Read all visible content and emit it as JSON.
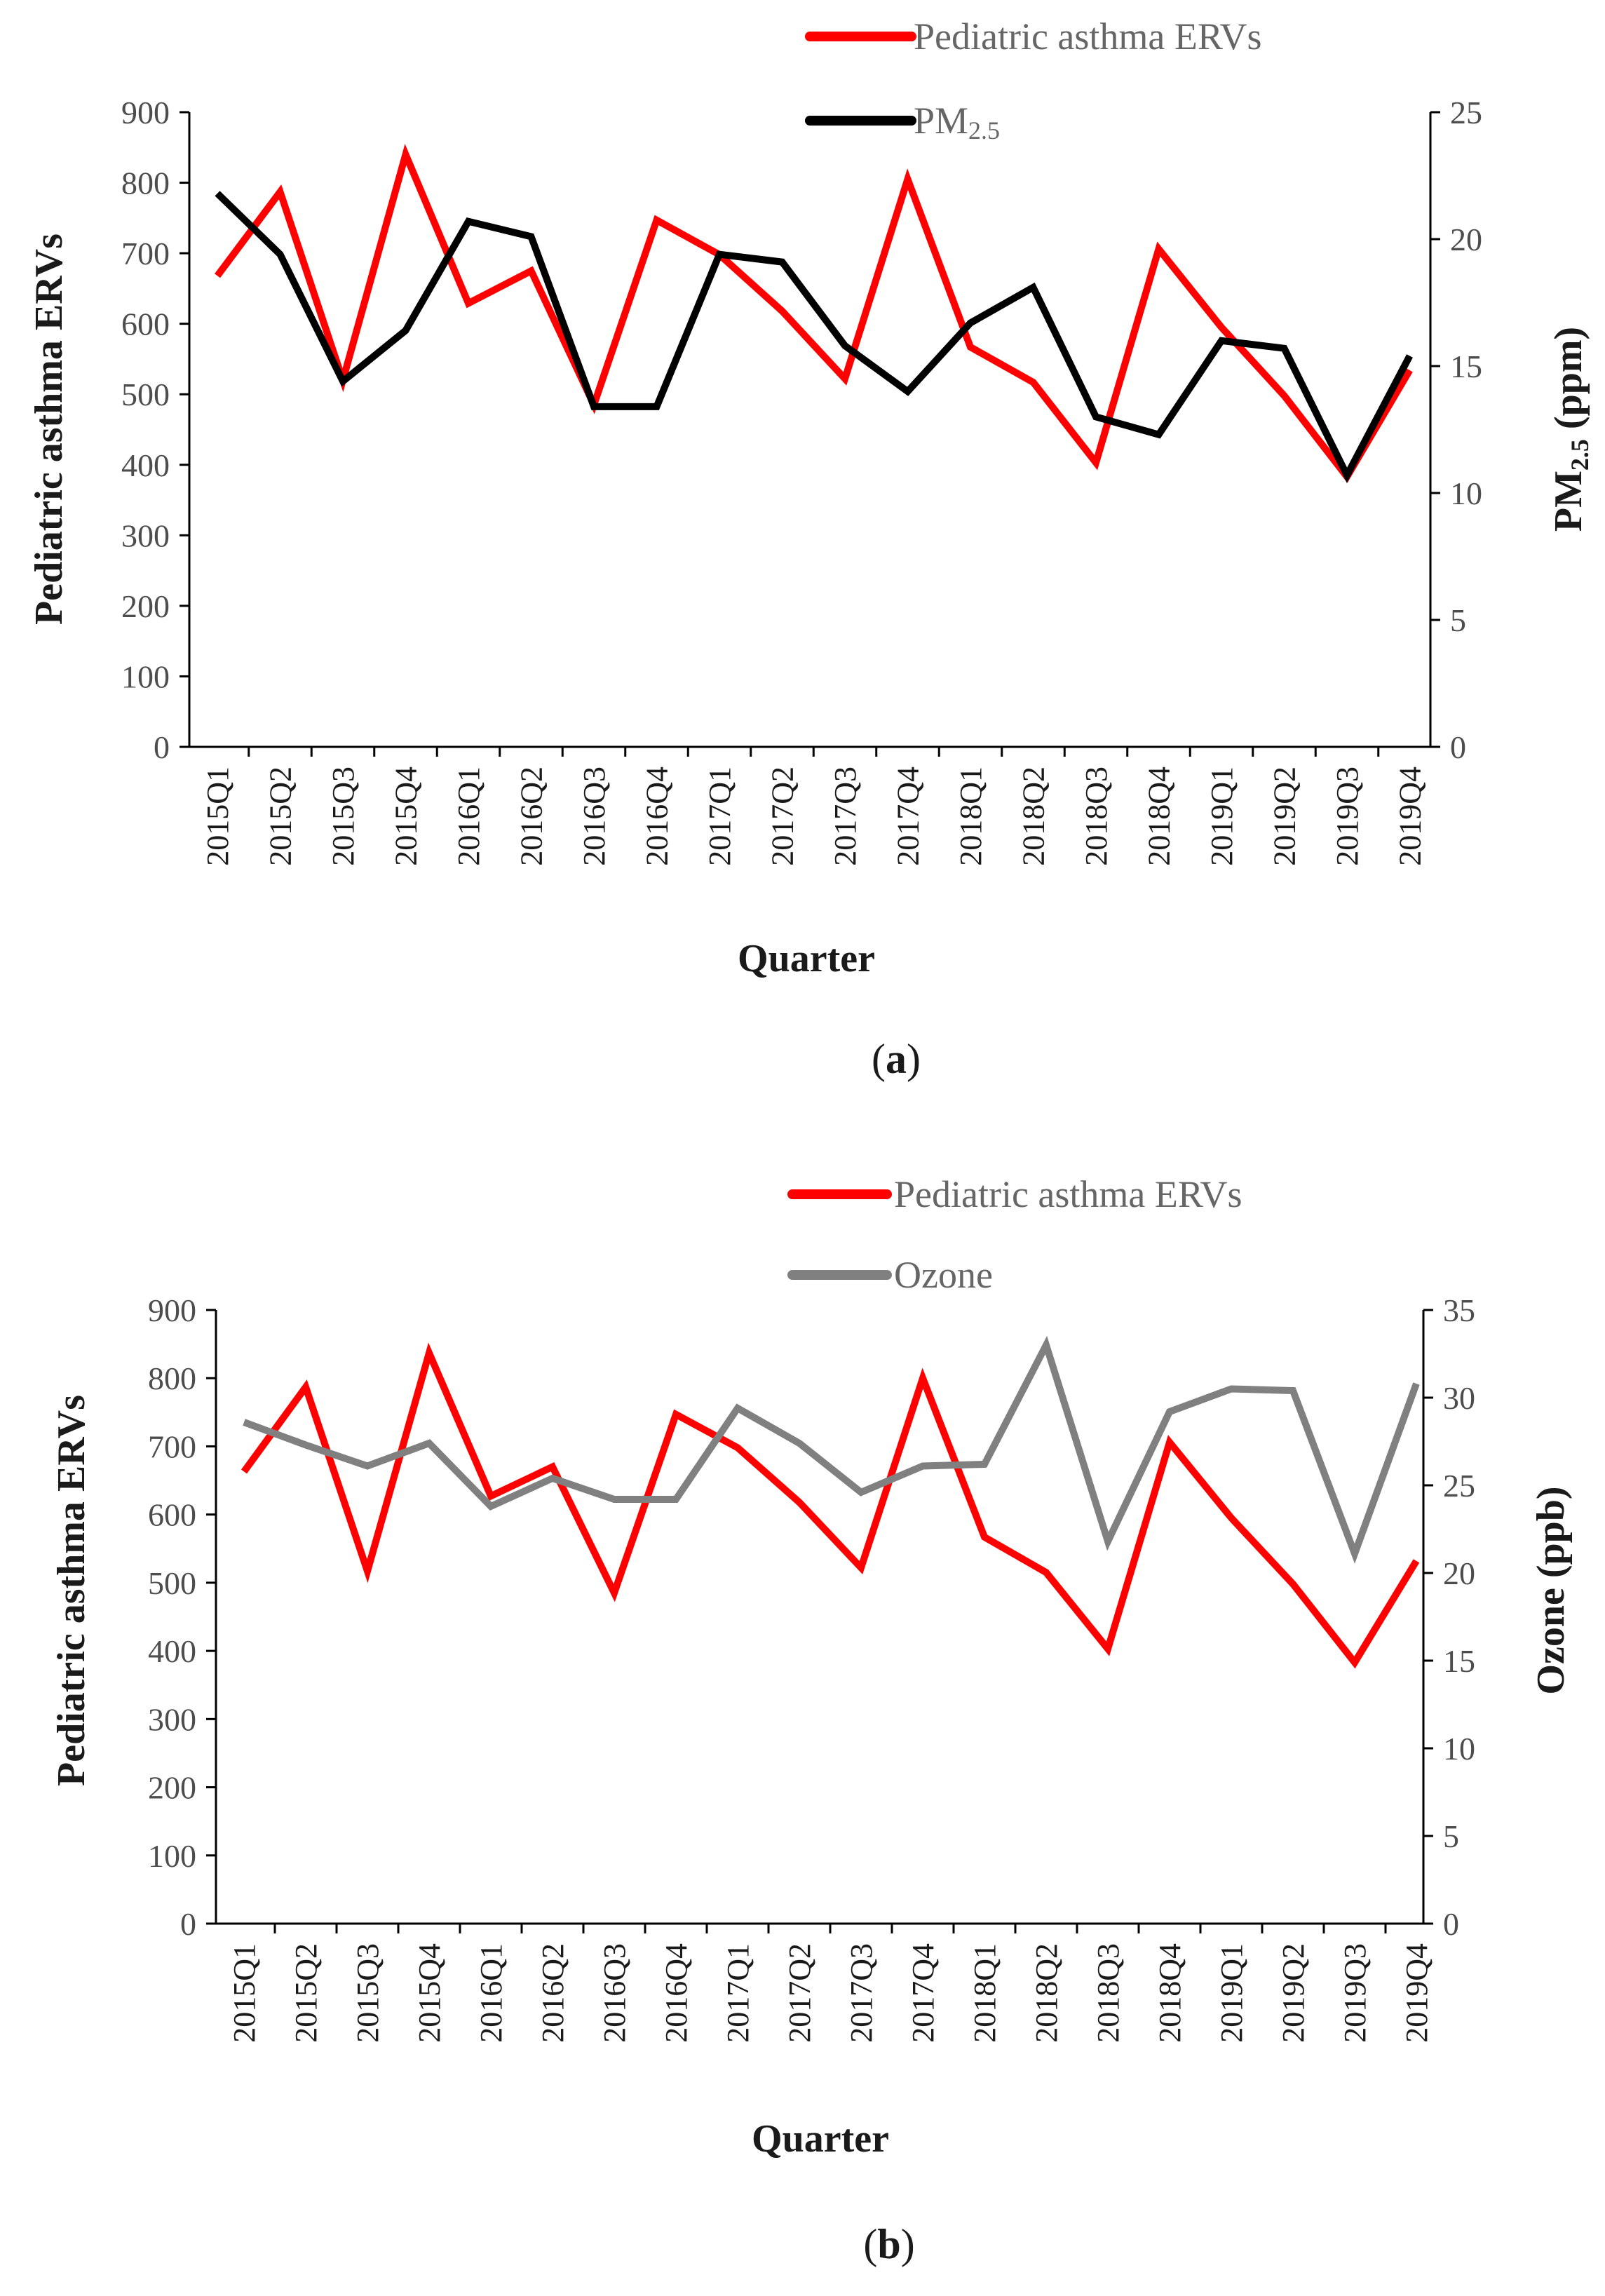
{
  "chart_data": [
    {
      "type": "line",
      "panel_label_open": "(",
      "panel_label_letter": "a",
      "panel_label_close": ")",
      "categories": [
        "2015Q1",
        "2015Q2",
        "2015Q3",
        "2015Q4",
        "2016Q1",
        "2016Q2",
        "2016Q3",
        "2016Q4",
        "2017Q1",
        "2017Q2",
        "2017Q3",
        "2017Q4",
        "2018Q1",
        "2018Q2",
        "2018Q3",
        "2018Q4",
        "2019Q1",
        "2019Q2",
        "2019Q3",
        "2019Q4"
      ],
      "xlabel": "Quarter",
      "ylabel": "Pediatric asthma ERVs",
      "y2label_main": "PM",
      "y2label_sub": "2.5",
      "y2label_unit": " (ppm)",
      "ylim": [
        0,
        900
      ],
      "yticks": [
        0,
        100,
        200,
        300,
        400,
        500,
        600,
        700,
        800,
        900
      ],
      "y2lim": [
        0,
        25
      ],
      "y2ticks": [
        0,
        5,
        10,
        15,
        20,
        25
      ],
      "legend_position": "top-right",
      "series": [
        {
          "name": "Pediatric asthma ERVs",
          "axis": "left",
          "color": "#ff0000",
          "values": [
            668,
            787,
            520,
            840,
            629,
            675,
            485,
            747,
            698,
            618,
            522,
            805,
            567,
            517,
            403,
            706,
            595,
            498,
            383,
            534
          ]
        },
        {
          "name_main": "PM",
          "name_sub": "2.5",
          "axis": "right",
          "color": "#000000",
          "values": [
            21.8,
            19.4,
            14.4,
            16.4,
            20.7,
            20.1,
            13.4,
            13.4,
            19.4,
            19.1,
            15.8,
            14.0,
            16.7,
            18.1,
            13.0,
            12.3,
            16.0,
            15.7,
            10.7,
            15.4
          ]
        }
      ]
    },
    {
      "type": "line",
      "panel_label_open": "(",
      "panel_label_letter": "b",
      "panel_label_close": ")",
      "categories": [
        "2015Q1",
        "2015Q2",
        "2015Q3",
        "2015Q4",
        "2016Q1",
        "2016Q2",
        "2016Q3",
        "2016Q4",
        "2017Q1",
        "2017Q2",
        "2017Q3",
        "2017Q4",
        "2018Q1",
        "2018Q2",
        "2018Q3",
        "2018Q4",
        "2019Q1",
        "2019Q2",
        "2019Q3",
        "2019Q4"
      ],
      "xlabel": "Quarter",
      "ylabel": "Pediatric asthma ERVs",
      "y2label": "Ozone (ppb)",
      "ylim": [
        0,
        900
      ],
      "yticks": [
        0,
        100,
        200,
        300,
        400,
        500,
        600,
        700,
        800,
        900
      ],
      "y2lim": [
        0,
        35
      ],
      "y2ticks": [
        0,
        5,
        10,
        15,
        20,
        25,
        30,
        35
      ],
      "legend_position": "top-right",
      "series": [
        {
          "name": "Pediatric asthma ERVs",
          "axis": "left",
          "color": "#ff0000",
          "values": [
            663,
            787,
            517,
            837,
            627,
            670,
            485,
            747,
            698,
            618,
            522,
            800,
            567,
            515,
            403,
            706,
            595,
            498,
            383,
            532
          ]
        },
        {
          "name": "Ozone",
          "axis": "right",
          "color": "#808080",
          "values": [
            28.6,
            27.3,
            26.1,
            27.4,
            23.8,
            25.4,
            24.2,
            24.2,
            29.4,
            27.4,
            24.6,
            26.1,
            26.2,
            33.0,
            21.8,
            29.2,
            30.5,
            30.4,
            21.1,
            30.8
          ]
        }
      ]
    }
  ]
}
